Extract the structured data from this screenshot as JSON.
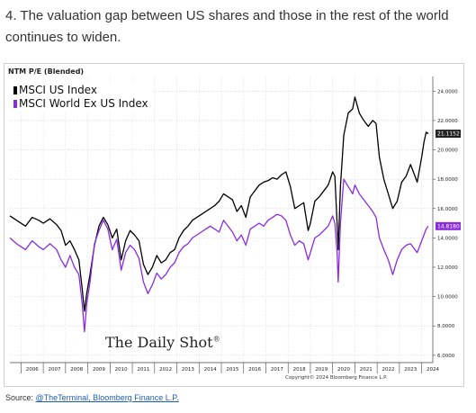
{
  "heading": "4. The valuation gap between US shares and those in the rest of the world continues to widen.",
  "source": {
    "prefix": "Source: ",
    "link_text": "@TheTerminal, Bloomberg Finance L.P."
  },
  "chart_data": {
    "type": "line",
    "title": "NTM P/E (Blended)",
    "watermark": "The Daily Shot",
    "watermark_mark": "®",
    "copyright": "Copyright© 2024 Bloomberg Finance L.P.",
    "x_ticks": [
      "2006",
      "2007",
      "2008",
      "2009",
      "2010",
      "2011",
      "2012",
      "2013",
      "2014",
      "2015",
      "2016",
      "2017",
      "2018",
      "2019",
      "2020",
      "2021",
      "2022",
      "2023",
      "2024"
    ],
    "y_ticks": [
      "6.0000",
      "8.0000",
      "10.0000",
      "12.0000",
      "14.0000",
      "16.0000",
      "18.0000",
      "20.0000",
      "22.0000",
      "24.0000"
    ],
    "xlim": [
      2005.5,
      2024.5
    ],
    "ylim": [
      5.5,
      25.0
    ],
    "grid": true,
    "legend_position": "top-left",
    "series": [
      {
        "name": "MSCI US Index",
        "color": "#000000",
        "last_label": "21.1152",
        "x": [
          2005.5,
          2005.8,
          2006.2,
          2006.5,
          2006.8,
          2007.0,
          2007.3,
          2007.6,
          2007.8,
          2008.0,
          2008.2,
          2008.4,
          2008.6,
          2008.75,
          2008.85,
          2008.95,
          2009.1,
          2009.3,
          2009.5,
          2009.7,
          2009.9,
          2010.1,
          2010.3,
          2010.5,
          2010.7,
          2010.9,
          2011.1,
          2011.3,
          2011.5,
          2011.7,
          2011.9,
          2012.1,
          2012.3,
          2012.5,
          2012.7,
          2012.9,
          2013.1,
          2013.3,
          2013.5,
          2013.7,
          2013.9,
          2014.1,
          2014.3,
          2014.5,
          2014.7,
          2014.9,
          2015.1,
          2015.3,
          2015.5,
          2015.7,
          2015.9,
          2016.1,
          2016.3,
          2016.5,
          2016.7,
          2016.9,
          2017.1,
          2017.3,
          2017.5,
          2017.7,
          2017.9,
          2018.1,
          2018.3,
          2018.5,
          2018.7,
          2018.9,
          2019.0,
          2019.2,
          2019.4,
          2019.6,
          2019.8,
          2020.0,
          2020.1,
          2020.2,
          2020.25,
          2020.35,
          2020.5,
          2020.7,
          2020.9,
          2021.0,
          2021.2,
          2021.4,
          2021.6,
          2021.8,
          2021.95,
          2022.1,
          2022.3,
          2022.5,
          2022.7,
          2022.9,
          2023.1,
          2023.3,
          2023.5,
          2023.7,
          2023.8,
          2024.0,
          2024.1,
          2024.2,
          2024.3
        ],
        "y": [
          15.5,
          15.2,
          14.8,
          15.4,
          15.2,
          15.0,
          15.3,
          14.9,
          14.5,
          13.5,
          13.8,
          13.2,
          12.5,
          10.5,
          9.0,
          10.2,
          11.5,
          13.5,
          14.8,
          15.4,
          14.9,
          14.0,
          14.6,
          12.5,
          13.8,
          14.5,
          14.2,
          13.8,
          12.2,
          11.5,
          12.0,
          12.8,
          12.3,
          12.5,
          13.0,
          13.2,
          14.0,
          14.5,
          14.8,
          15.2,
          15.4,
          15.6,
          15.8,
          16.0,
          16.2,
          16.5,
          17.0,
          16.8,
          16.6,
          15.8,
          16.2,
          15.4,
          16.8,
          17.2,
          17.6,
          17.8,
          17.9,
          18.1,
          18.0,
          18.3,
          18.5,
          17.5,
          16.0,
          16.2,
          16.4,
          14.5,
          15.0,
          16.5,
          16.8,
          17.2,
          17.6,
          18.5,
          18.2,
          15.0,
          13.2,
          17.5,
          21.0,
          22.5,
          22.8,
          23.6,
          22.5,
          22.0,
          21.6,
          22.0,
          21.8,
          19.5,
          18.0,
          17.0,
          16.0,
          16.5,
          17.8,
          18.2,
          19.0,
          18.2,
          17.8,
          19.5,
          20.5,
          21.2,
          21.1
        ]
      },
      {
        "name": "MSCI World Ex US Index",
        "color": "#8a2be2",
        "last_label": "14.8180",
        "x": [
          2005.5,
          2005.8,
          2006.2,
          2006.5,
          2006.8,
          2007.0,
          2007.3,
          2007.6,
          2007.8,
          2008.0,
          2008.2,
          2008.4,
          2008.6,
          2008.75,
          2008.85,
          2008.95,
          2009.1,
          2009.3,
          2009.5,
          2009.7,
          2009.9,
          2010.1,
          2010.3,
          2010.5,
          2010.7,
          2010.9,
          2011.1,
          2011.3,
          2011.5,
          2011.7,
          2011.9,
          2012.1,
          2012.3,
          2012.5,
          2012.7,
          2012.9,
          2013.1,
          2013.3,
          2013.5,
          2013.7,
          2013.9,
          2014.1,
          2014.3,
          2014.5,
          2014.7,
          2014.9,
          2015.1,
          2015.3,
          2015.5,
          2015.7,
          2015.9,
          2016.1,
          2016.3,
          2016.5,
          2016.7,
          2016.9,
          2017.1,
          2017.3,
          2017.5,
          2017.7,
          2017.9,
          2018.1,
          2018.3,
          2018.5,
          2018.7,
          2018.9,
          2019.0,
          2019.2,
          2019.4,
          2019.6,
          2019.8,
          2020.0,
          2020.1,
          2020.2,
          2020.25,
          2020.35,
          2020.5,
          2020.7,
          2020.9,
          2021.0,
          2021.2,
          2021.4,
          2021.6,
          2021.8,
          2021.95,
          2022.1,
          2022.3,
          2022.5,
          2022.7,
          2022.9,
          2023.1,
          2023.3,
          2023.5,
          2023.7,
          2023.8,
          2024.0,
          2024.1,
          2024.2,
          2024.3
        ],
        "y": [
          14.0,
          13.6,
          13.2,
          13.8,
          13.4,
          13.2,
          13.6,
          13.2,
          12.5,
          12.0,
          12.8,
          12.0,
          11.5,
          9.5,
          7.6,
          9.5,
          11.0,
          13.6,
          14.5,
          15.2,
          14.6,
          13.2,
          13.9,
          11.8,
          13.0,
          13.5,
          13.2,
          12.6,
          11.0,
          10.2,
          10.8,
          11.6,
          11.2,
          11.5,
          12.0,
          12.3,
          13.0,
          13.4,
          13.6,
          14.0,
          14.2,
          14.4,
          14.6,
          14.8,
          14.6,
          14.4,
          15.2,
          14.8,
          14.4,
          13.8,
          14.2,
          13.5,
          14.6,
          14.8,
          15.0,
          14.8,
          15.2,
          15.4,
          15.6,
          15.5,
          15.2,
          14.2,
          13.5,
          13.8,
          13.6,
          12.5,
          13.0,
          14.0,
          14.2,
          14.5,
          14.8,
          15.5,
          15.0,
          13.0,
          11.0,
          15.0,
          18.0,
          17.5,
          17.0,
          17.6,
          17.0,
          16.6,
          16.2,
          15.8,
          15.4,
          14.0,
          13.2,
          12.5,
          11.5,
          12.5,
          13.2,
          13.5,
          13.6,
          13.2,
          13.0,
          13.8,
          14.2,
          14.6,
          14.8
        ]
      }
    ]
  }
}
